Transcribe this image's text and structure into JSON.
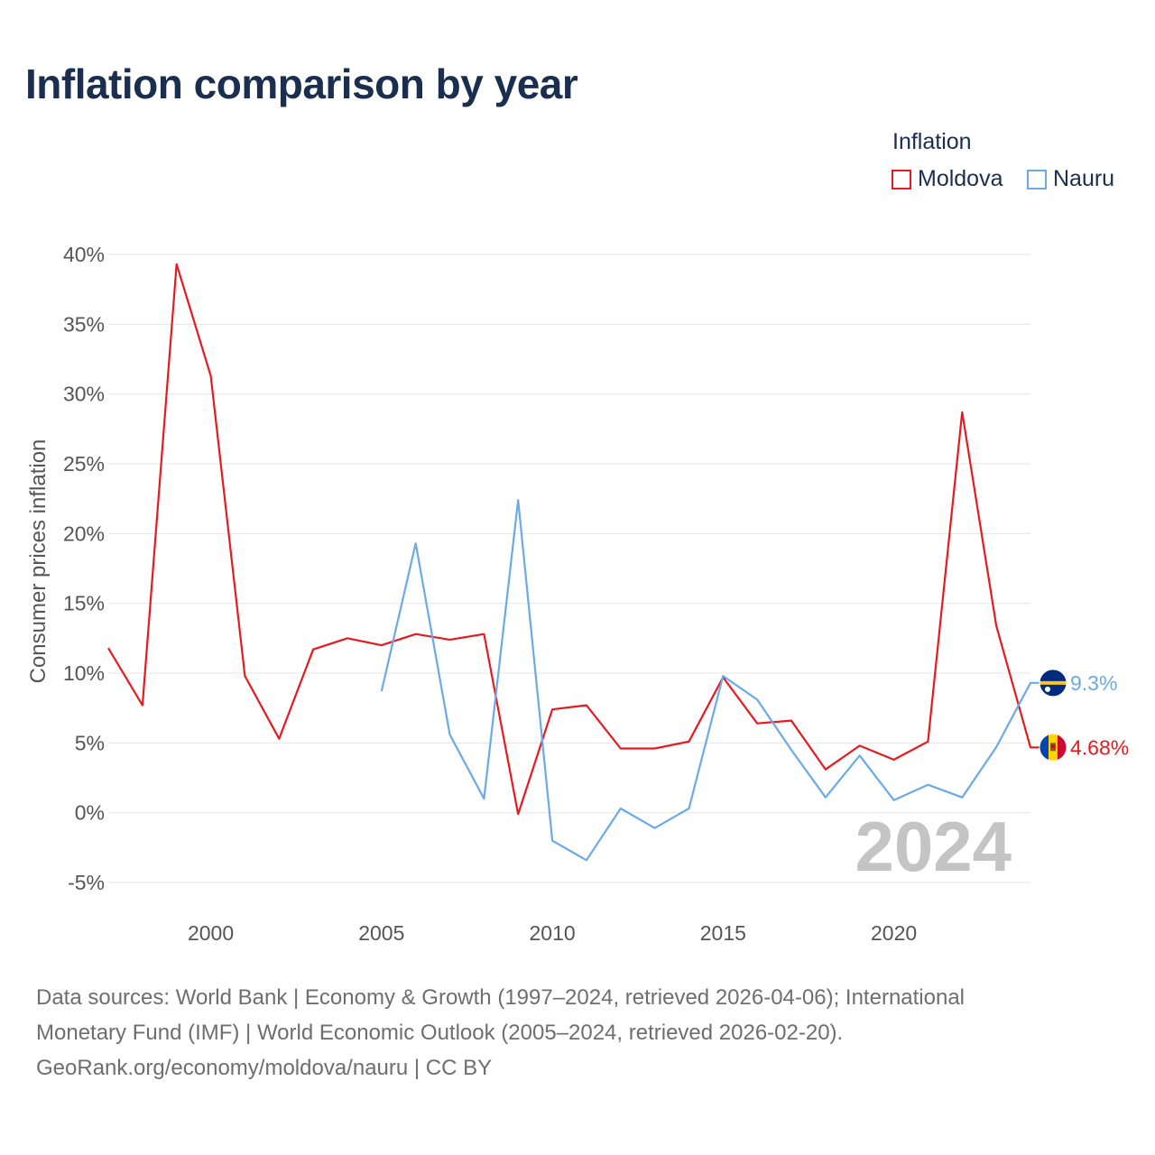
{
  "title": "Inflation comparison by year",
  "legend": {
    "title": "Inflation",
    "items": [
      {
        "label": "Moldova",
        "color": "#e8191f"
      },
      {
        "label": "Nauru",
        "color": "#6aaae6"
      }
    ]
  },
  "watermark_year": "2024",
  "footer": {
    "line1": "Data sources: World Bank | Economy & Growth (1997–2024, retrieved 2026-04-06); International",
    "line2": "Monetary Fund (IMF) | World Economic Outlook (2005–2024, retrieved 2026-02-20).",
    "line3": "GeoRank.org/economy/moldova/nauru | CC BY"
  },
  "chart_data": {
    "type": "line",
    "title": "Inflation comparison by year",
    "xlabel": "",
    "ylabel": "Consumer prices inflation",
    "xlim": [
      1997,
      2024
    ],
    "ylim": [
      -5,
      40
    ],
    "x_ticks": [
      2000,
      2005,
      2010,
      2015,
      2020
    ],
    "y_ticks": [
      -5,
      0,
      5,
      10,
      15,
      20,
      25,
      30,
      35,
      40
    ],
    "y_tick_labels": [
      "-5%",
      "0%",
      "5%",
      "10%",
      "15%",
      "20%",
      "25%",
      "30%",
      "35%",
      "40%"
    ],
    "grid": true,
    "series": [
      {
        "name": "Moldova",
        "color": "#e8191f",
        "end_label": "4.68%",
        "flag": "moldova-flag-icon",
        "x": [
          1997,
          1998,
          1999,
          2000,
          2001,
          2002,
          2003,
          2004,
          2005,
          2006,
          2007,
          2008,
          2009,
          2010,
          2011,
          2012,
          2013,
          2014,
          2015,
          2016,
          2017,
          2018,
          2019,
          2020,
          2021,
          2022,
          2023,
          2024
        ],
        "values": [
          11.8,
          7.7,
          39.3,
          31.3,
          9.8,
          5.3,
          11.7,
          12.5,
          12.0,
          12.8,
          12.4,
          12.8,
          -0.1,
          7.4,
          7.7,
          4.6,
          4.6,
          5.1,
          9.7,
          6.4,
          6.6,
          3.1,
          4.8,
          3.8,
          5.1,
          28.7,
          13.4,
          4.68
        ]
      },
      {
        "name": "Nauru",
        "color": "#6aaae6",
        "end_label": "9.3%",
        "flag": "nauru-flag-icon",
        "x": [
          2005,
          2006,
          2007,
          2008,
          2009,
          2010,
          2011,
          2012,
          2013,
          2014,
          2015,
          2016,
          2017,
          2018,
          2019,
          2020,
          2021,
          2022,
          2023,
          2024
        ],
        "values": [
          8.7,
          19.3,
          5.6,
          1.0,
          22.4,
          -2.0,
          -3.4,
          0.3,
          -1.1,
          0.3,
          9.8,
          8.1,
          4.5,
          1.1,
          4.1,
          0.9,
          2.0,
          1.1,
          4.7,
          9.3
        ]
      }
    ]
  }
}
